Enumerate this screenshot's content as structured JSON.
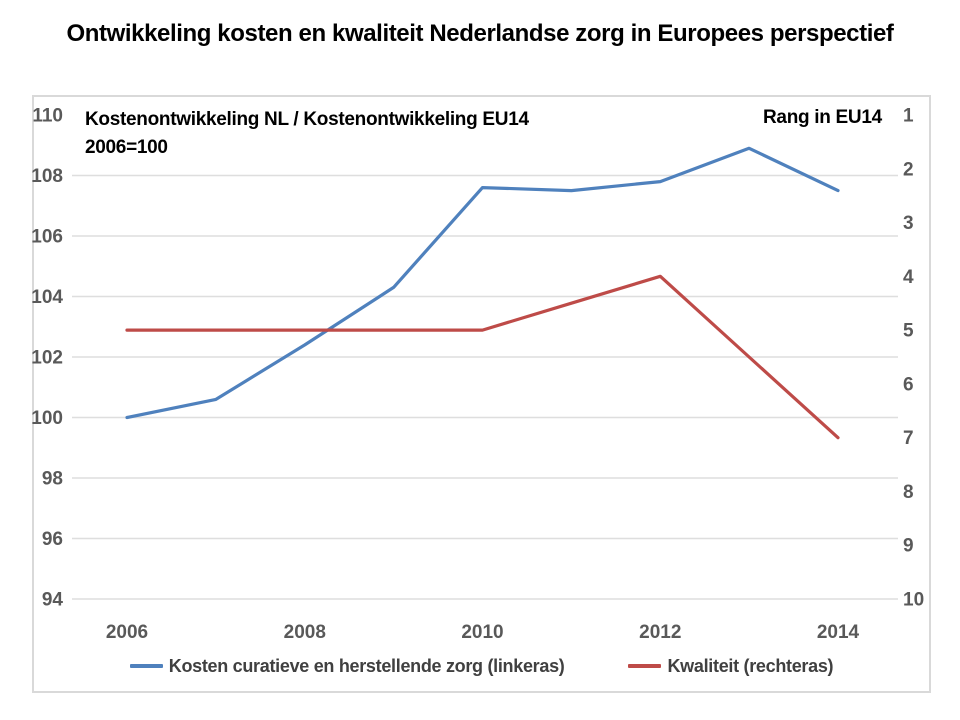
{
  "title": "Ontwikkeling kosten en kwaliteit Nederlandse zorg in Europees perspectief",
  "colors": {
    "series_blue": "#4F81BD",
    "series_red": "#BE4B48",
    "axis_text": "#595959",
    "grid_line": "#dedede",
    "chart_border": "#d9d9d9",
    "title_text": "#000000",
    "legend_text": "#404040"
  },
  "chart_data": {
    "type": "line",
    "title": "Ontwikkeling kosten en kwaliteit Nederlandse zorg in Europees perspectief",
    "x": [
      2006,
      2007,
      2008,
      2009,
      2010,
      2011,
      2012,
      2013,
      2014
    ],
    "x_tick_labels": [
      "2006",
      "2008",
      "2010",
      "2012",
      "2014"
    ],
    "series": [
      {
        "name": "Kosten curatieve en herstellende zorg (linkeras)",
        "axis": "left",
        "color": "#4F81BD",
        "values": [
          100.0,
          100.6,
          102.4,
          104.3,
          107.6,
          107.5,
          107.8,
          108.9,
          107.5
        ]
      },
      {
        "name": "Kwaliteit (rechteras)",
        "axis": "right",
        "color": "#BE4B48",
        "values": [
          5,
          5,
          5,
          5,
          5,
          4.5,
          4,
          5.5,
          7
        ]
      }
    ],
    "left_axis": {
      "label_line1": "Kostenontwikkeling NL / Kostenontwikkeling EU14",
      "label_line2": "2006=100",
      "range": [
        94,
        110
      ],
      "ticks": [
        110,
        108,
        106,
        104,
        102,
        100,
        98,
        96,
        94
      ]
    },
    "right_axis": {
      "label": "Rang in EU14",
      "range": [
        1,
        10
      ],
      "inverted": true,
      "ticks": [
        1,
        2,
        3,
        4,
        5,
        6,
        7,
        8,
        9,
        10
      ]
    },
    "grid": {
      "horizontal": true,
      "at_left_values": [
        108,
        106,
        104,
        102,
        100,
        98,
        96,
        94
      ]
    },
    "legend_position": "bottom"
  }
}
